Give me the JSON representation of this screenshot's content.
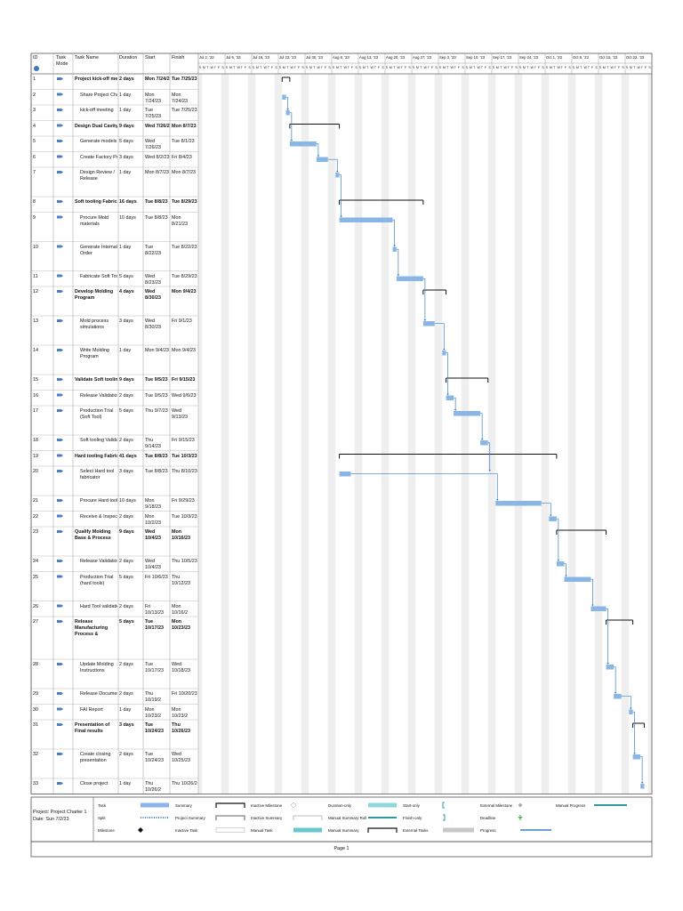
{
  "header": {
    "id": "ID",
    "mode": "Task Mode",
    "name": "Task Name",
    "duration": "Duration",
    "start": "Start",
    "finish": "Finish"
  },
  "timescale": {
    "weeks": [
      "Jul 2, '23",
      "Jul 9, '23",
      "Jul 16, '23",
      "Jul 23, '23",
      "Jul 30, '23",
      "Aug 6, '23",
      "Aug 13, '23",
      "Aug 20, '23",
      "Aug 27, '23",
      "Sep 3, '23",
      "Sep 10, '23",
      "Sep 17, '23",
      "Sep 24, '23",
      "Oct 1, '23",
      "Oct 8, '23",
      "Oct 15, '23",
      "Oct 22, '23"
    ],
    "days": [
      "S",
      "M",
      "T",
      "W",
      "T",
      "F",
      "S"
    ]
  },
  "tasks": [
    {
      "id": 1,
      "name": "Project kick-off meet",
      "duration": "2 days",
      "start": "Mon 7/24/2",
      "finish": "Tue 7/25/23",
      "summary": true
    },
    {
      "id": 2,
      "name": "Share Project Chart",
      "duration": "1 day",
      "start": "Mon 7/24/23",
      "finish": "Mon 7/24/23",
      "summary": false
    },
    {
      "id": 3,
      "name": "kick-off meeting",
      "duration": "1 day",
      "start": "Tue 7/25/23",
      "finish": "Tue 7/25/23",
      "summary": false
    },
    {
      "id": 4,
      "name": "Design Dual Cavity M",
      "duration": "9 days",
      "start": "Wed 7/26/2",
      "finish": "Mon 8/7/23",
      "summary": true
    },
    {
      "id": 5,
      "name": "Generate models",
      "duration": "5 days",
      "start": "Wed 7/26/23",
      "finish": "Tue 8/1/23",
      "summary": false
    },
    {
      "id": 6,
      "name": "Create Factory Prin",
      "duration": "3 days",
      "start": "Wed 8/2/23",
      "finish": "Fri 8/4/23",
      "summary": false
    },
    {
      "id": 7,
      "name": "Design Review / Release",
      "duration": "1 day",
      "start": "Mon 8/7/23",
      "finish": "Mon 8/7/23",
      "summary": false
    },
    {
      "id": 8,
      "name": "Soft tooling Fabricati",
      "duration": "16 days",
      "start": "Tue 8/8/23",
      "finish": "Tue 8/29/23",
      "summary": true
    },
    {
      "id": 9,
      "name": "Procure Mold materials",
      "duration": "10 days",
      "start": "Tue 8/8/23",
      "finish": "Mon 8/21/23",
      "summary": false
    },
    {
      "id": 10,
      "name": "Generate Internal Order",
      "duration": "1 day",
      "start": "Tue 8/22/23",
      "finish": "Tue 8/22/23",
      "summary": false
    },
    {
      "id": 11,
      "name": "Fabricate Soft Tool",
      "duration": "5 days",
      "start": "Wed 8/23/23",
      "finish": "Tue 8/29/23",
      "summary": false
    },
    {
      "id": 12,
      "name": "Develop Molding Program",
      "duration": "4 days",
      "start": "Wed 8/30/23",
      "finish": "Mon 9/4/23",
      "summary": true
    },
    {
      "id": 13,
      "name": "Mold process simulations",
      "duration": "3 days",
      "start": "Wed 8/30/23",
      "finish": "Fri 9/1/23",
      "summary": false
    },
    {
      "id": 14,
      "name": "Write Molding Program",
      "duration": "1 day",
      "start": "Mon 9/4/23",
      "finish": "Mon 9/4/23",
      "summary": false
    },
    {
      "id": 15,
      "name": "Validate Soft tooling",
      "duration": "9 days",
      "start": "Tue 9/5/23",
      "finish": "Fri 9/15/23",
      "summary": true
    },
    {
      "id": 16,
      "name": "Release Validation",
      "duration": "2 days",
      "start": "Tue 9/5/23",
      "finish": "Wed 9/6/23",
      "summary": false
    },
    {
      "id": 17,
      "name": "Production Trial (Soft Tool)",
      "duration": "5 days",
      "start": "Thu 9/7/23",
      "finish": "Wed 9/13/23",
      "summary": false
    },
    {
      "id": 18,
      "name": "Soft tooling Validat",
      "duration": "2 days",
      "start": "Thu 9/14/23",
      "finish": "Fri 9/15/23",
      "summary": false
    },
    {
      "id": 19,
      "name": "Hard tooling Fabricat",
      "duration": "41 days",
      "start": "Tue 8/8/23",
      "finish": "Tue 10/3/23",
      "summary": true
    },
    {
      "id": 20,
      "name": "Select Hard tool fabricator",
      "duration": "3 days",
      "start": "Tue 8/8/23",
      "finish": "Thu 8/10/23",
      "summary": false
    },
    {
      "id": 21,
      "name": "Procure Hard tools",
      "duration": "10 days",
      "start": "Mon 9/18/23",
      "finish": "Fri 9/29/23",
      "summary": false
    },
    {
      "id": 22,
      "name": "Receive & Inspect t",
      "duration": "2 days",
      "start": "Mon 10/2/23",
      "finish": "Tue 10/3/23",
      "summary": false
    },
    {
      "id": 23,
      "name": "Qualify Molding Base & Process",
      "duration": "9 days",
      "start": "Wed 10/4/23",
      "finish": "Mon 10/16/23",
      "summary": true
    },
    {
      "id": 24,
      "name": "Release Validation",
      "duration": "2 days",
      "start": "Wed 10/4/23",
      "finish": "Thu 10/5/23",
      "summary": false
    },
    {
      "id": 25,
      "name": "Production Trial (hard tools)",
      "duration": "5 days",
      "start": "Fri 10/6/23",
      "finish": "Thu 10/12/23",
      "summary": false
    },
    {
      "id": 26,
      "name": "Hard Tool validatio",
      "duration": "2 days",
      "start": "Fri 10/13/23",
      "finish": "Mon 10/16/2",
      "summary": false
    },
    {
      "id": 27,
      "name": "Release Manufacturing Process &",
      "duration": "5 days",
      "start": "Tue 10/17/23",
      "finish": "Mon 10/23/23",
      "summary": true
    },
    {
      "id": 28,
      "name": "Update Molding Instructions",
      "duration": "2 days",
      "start": "Tue 10/17/23",
      "finish": "Wed 10/18/23",
      "summary": false
    },
    {
      "id": 29,
      "name": "Release Document",
      "duration": "2 days",
      "start": "Thu 10/19/2",
      "finish": "Fri 10/20/23",
      "summary": false
    },
    {
      "id": 30,
      "name": "FAI Report",
      "duration": "1 day",
      "start": "Mon 10/23/2",
      "finish": "Mon 10/23/2",
      "summary": false
    },
    {
      "id": 31,
      "name": "Presentation of Final results",
      "duration": "3 days",
      "start": "Tue 10/24/23",
      "finish": "Thu 10/26/23",
      "summary": true
    },
    {
      "id": 32,
      "name": "Create closing presentation",
      "duration": "2 days",
      "start": "Tue 10/24/23",
      "finish": "Wed 10/25/23",
      "summary": false
    },
    {
      "id": 33,
      "name": "Close project",
      "duration": "1 day",
      "start": "Thu 10/26/2",
      "finish": "Thu 10/26/2",
      "summary": false
    }
  ],
  "legend": [
    {
      "label": "Task",
      "symbol": "task"
    },
    {
      "label": "Split",
      "symbol": "split"
    },
    {
      "label": "Milestone",
      "symbol": "milestone"
    },
    {
      "label": "Summary",
      "symbol": "summary"
    },
    {
      "label": "Project Summary",
      "symbol": "project-summary"
    },
    {
      "label": "Inactive Task",
      "symbol": "inactive-task"
    },
    {
      "label": "Inactive Milestone",
      "symbol": "inactive-milestone"
    },
    {
      "label": "Inactive Summary",
      "symbol": "inactive-summary"
    },
    {
      "label": "Manual Task",
      "symbol": "manual-task"
    },
    {
      "label": "Duration-only",
      "symbol": "duration-only"
    },
    {
      "label": "Manual Summary Rollup",
      "symbol": "rollup"
    },
    {
      "label": "Manual Summary",
      "symbol": "manual-summary"
    },
    {
      "label": "Start-only",
      "symbol": "start-only"
    },
    {
      "label": "Finish-only",
      "symbol": "finish-only"
    },
    {
      "label": "External Tasks",
      "symbol": "external-tasks"
    },
    {
      "label": "External Milestone",
      "symbol": "external-milestone"
    },
    {
      "label": "Deadline",
      "symbol": "deadline"
    },
    {
      "label": "Progress",
      "symbol": "progress"
    },
    {
      "label": "Manual Progress",
      "symbol": "manual-progress"
    }
  ],
  "footer": {
    "project": "Project: Project Charter 1",
    "date": "Date: Sun 7/2/23",
    "page": "Page 1"
  }
}
